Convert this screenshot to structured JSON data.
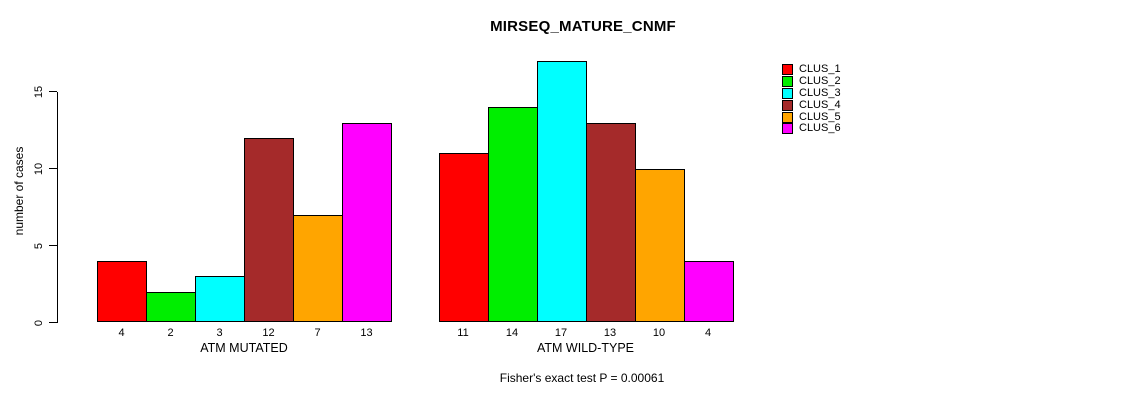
{
  "chart_data": {
    "type": "bar",
    "title": "MIRSEQ_MATURE_CNMF",
    "ylabel": "number of cases",
    "yticks": [
      0,
      5,
      10,
      15
    ],
    "ylim": [
      0,
      17
    ],
    "grid": false,
    "legend_position": "right",
    "bar_value_labels_shown": true,
    "annotation": "Fisher's exact test P = 0.00061",
    "groups": [
      {
        "label": "ATM MUTATED",
        "values": [
          4,
          2,
          3,
          12,
          7,
          13
        ]
      },
      {
        "label": "ATM WILD-TYPE",
        "values": [
          11,
          14,
          17,
          13,
          10,
          4
        ]
      }
    ],
    "series": [
      {
        "name": "CLUS_1",
        "color": "#FF0000"
      },
      {
        "name": "CLUS_2",
        "color": "#00EE00"
      },
      {
        "name": "CLUS_3",
        "color": "#00FFFF"
      },
      {
        "name": "CLUS_4",
        "color": "#A52A2A"
      },
      {
        "name": "CLUS_5",
        "color": "#FFA500"
      },
      {
        "name": "CLUS_6",
        "color": "#FF00FF"
      }
    ]
  }
}
